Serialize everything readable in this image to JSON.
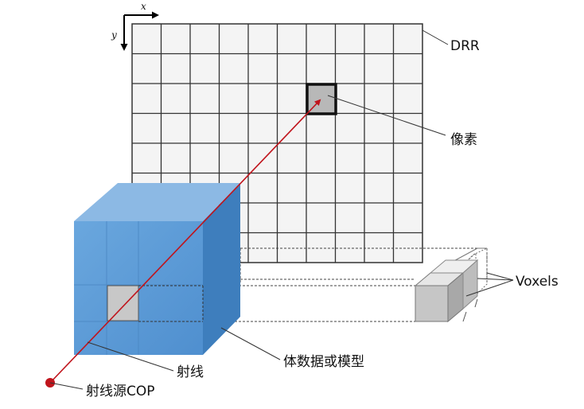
{
  "labels": {
    "drr": "DRR",
    "pixel": "像素",
    "voxels": "Voxels",
    "volume": "体数据或模型",
    "ray": "射线",
    "source": "射线源COP",
    "axis_x": "x",
    "axis_y": "y"
  },
  "colors": {
    "ray": "#c0141c",
    "cube_front": "#5b9bd5",
    "cube_top": "#8fbbe6",
    "cube_side": "#3f7fbf",
    "grid_fill": "#f2f2f2",
    "pixel_fill": "#bdbdbd",
    "voxel_fill": "#c8c8c8"
  }
}
